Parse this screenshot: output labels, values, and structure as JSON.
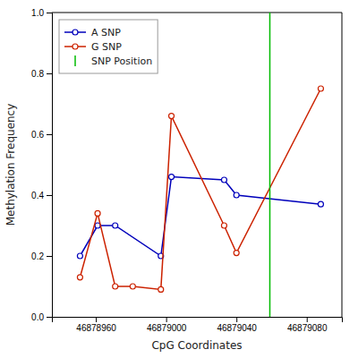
{
  "chart_data": {
    "type": "line",
    "xlabel": "CpG Coordinates",
    "ylabel": "Methylation Frequency",
    "xlim": [
      46878935,
      46879100
    ],
    "xticks": [
      46878960,
      46879000,
      46879040,
      46879080
    ],
    "ylim": [
      0.0,
      1.0
    ],
    "yticks": [
      {
        "value": 0.0,
        "label": "0.0"
      },
      0.2,
      0.4,
      0.6,
      0.8,
      {
        "value": 1.0,
        "label": "1.0"
      }
    ],
    "grid": false,
    "legend": "upper left",
    "series": [
      {
        "name": "A SNP",
        "color": "#0000bb",
        "marker": "circle",
        "x": [
          46878951,
          46878961,
          46878971,
          46878997,
          46879003,
          46879033,
          46879040,
          46879088
        ],
        "values": [
          0.2,
          0.3,
          0.3,
          0.2,
          0.46,
          0.45,
          0.4,
          0.37
        ]
      },
      {
        "name": "G SNP",
        "color": "#cc2200",
        "marker": "circle",
        "x": [
          46878951,
          46878961,
          46878971,
          46878981,
          46878997,
          46879003,
          46879033,
          46879040,
          46879088
        ],
        "values": [
          0.13,
          0.34,
          0.1,
          0.1,
          0.09,
          0.66,
          0.3,
          0.21,
          0.75
        ]
      },
      {
        "name": "SNP Position",
        "type": "vline",
        "color": "#00bb00",
        "x": 46879059
      }
    ]
  }
}
